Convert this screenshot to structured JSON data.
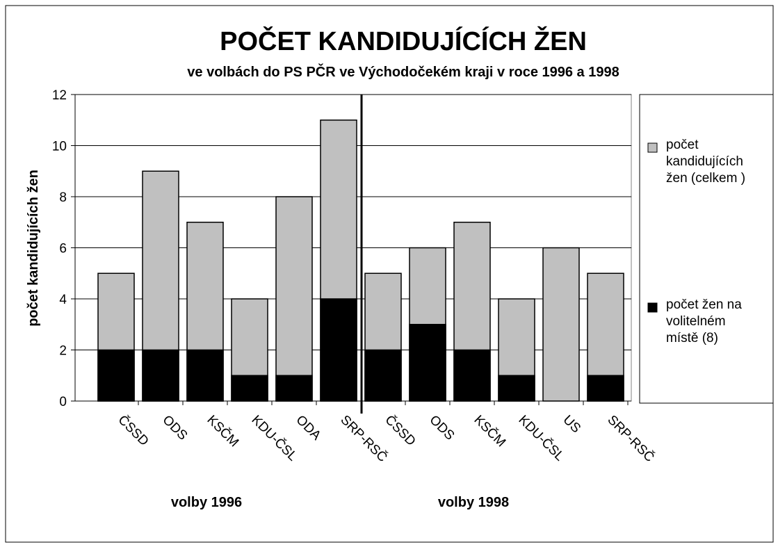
{
  "chart_data": {
    "type": "bar",
    "overlap": true,
    "title": "POČET KANDIDUJÍCÍCH ŽEN",
    "subtitle": "ve volbách do PS PČR ve Východočekém kraji v roce 1996 a 1998",
    "y_label": "počet kandidujících žen",
    "categories": [
      "ČSSD",
      "ODS",
      "KSČM",
      "KDU-ČSL",
      "ODA",
      "SRP-RSČ",
      "ČSSD",
      "ODS",
      "KSČM",
      "KDU-ČSL",
      "US",
      "SRP-RSČ"
    ],
    "groups": [
      "volby 1996",
      "volby 1998"
    ],
    "series": [
      {
        "name": "počet kandidujících žen (celkem )",
        "color": "#c0c0c0",
        "values": [
          5,
          9,
          7,
          4,
          8,
          11,
          5,
          6,
          7,
          4,
          6,
          5
        ]
      },
      {
        "name": "počet žen na volitelném místě (8)",
        "color": "#000000",
        "values": [
          2,
          2,
          2,
          1,
          1,
          4,
          2,
          3,
          2,
          1,
          0,
          1
        ]
      }
    ],
    "ylim": [
      0,
      12
    ],
    "yticks": [
      0,
      2,
      4,
      6,
      8,
      10,
      12
    ],
    "grid": true,
    "legend": "right"
  }
}
